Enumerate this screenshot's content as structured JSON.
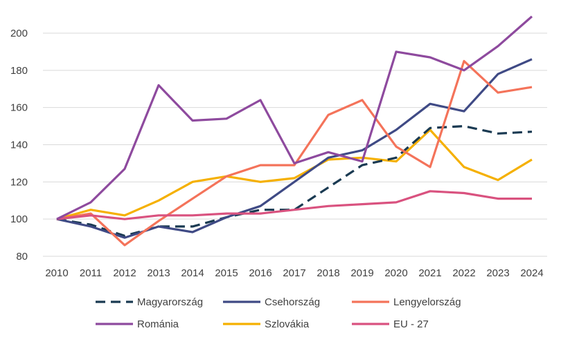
{
  "chart_data": {
    "type": "line",
    "title": "",
    "xlabel": "",
    "ylabel": "",
    "x": [
      2010,
      2011,
      2012,
      2013,
      2014,
      2015,
      2016,
      2017,
      2018,
      2019,
      2020,
      2021,
      2022,
      2023,
      2024
    ],
    "ylim": [
      80,
      210
    ],
    "yticks": [
      80,
      100,
      120,
      140,
      160,
      180,
      200
    ],
    "grid": "horizontal",
    "legend_position": "bottom",
    "series": [
      {
        "name": "Magyarország",
        "color": "#1a3a52",
        "dash": "dashed",
        "values": [
          100,
          97,
          91,
          96,
          96,
          101,
          105,
          105,
          117,
          129,
          133,
          149,
          150,
          146,
          147
        ]
      },
      {
        "name": "Csehország",
        "color": "#3f4a85",
        "dash": "solid",
        "values": [
          100,
          96,
          90,
          96,
          93,
          101,
          107,
          120,
          133,
          137,
          148,
          162,
          158,
          178,
          186
        ]
      },
      {
        "name": "Lengyelország",
        "color": "#f4735a",
        "dash": "solid",
        "values": [
          100,
          103,
          86,
          99,
          111,
          123,
          129,
          129,
          156,
          164,
          139,
          128,
          185,
          168,
          171
        ]
      },
      {
        "name": "Románia",
        "color": "#8e4a9e",
        "dash": "solid",
        "values": [
          100,
          109,
          127,
          172,
          153,
          154,
          164,
          130,
          136,
          131,
          190,
          187,
          180,
          193,
          209
        ]
      },
      {
        "name": "Szlovákia",
        "color": "#f5b000",
        "dash": "solid",
        "values": [
          100,
          105,
          102,
          110,
          120,
          123,
          120,
          122,
          132,
          133,
          131,
          148,
          128,
          121,
          132
        ]
      },
      {
        "name": "EU - 27",
        "color": "#d9527f",
        "dash": "solid",
        "values": [
          100,
          102,
          100,
          102,
          102,
          103,
          103,
          105,
          107,
          108,
          109,
          115,
          114,
          111,
          111
        ]
      }
    ]
  }
}
